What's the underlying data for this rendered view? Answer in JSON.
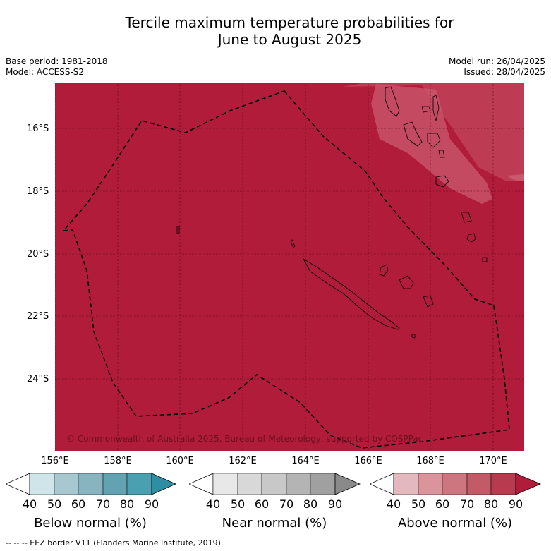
{
  "title_line1": "Tercile maximum temperature probabilities for",
  "title_line2": "June to August 2025",
  "base_period": "Base period: 1981-2018",
  "model": "Model: ACCESS-S2",
  "model_run": "Model run: 26/04/2025",
  "issued": "Issued: 28/04/2025",
  "copyright": "© Commonwealth of Australia 2025, Bureau of Meteorology, supported by COSPPac",
  "footer": "--  --  -- EEZ border V11 (Flanders Marine Institute, 2019).",
  "lat_labels": [
    "16°S",
    "18°S",
    "20°S",
    "22°S",
    "24°S"
  ],
  "lon_labels": [
    "156°E",
    "158°E",
    "160°E",
    "162°E",
    "164°E",
    "166°E",
    "168°E",
    "170°E"
  ],
  "colorbars": [
    {
      "label": "Below normal (%)",
      "ticks": [
        "40",
        "50",
        "60",
        "70",
        "80",
        "90"
      ],
      "colors": [
        "#cfe5ea",
        "#a7c8cf",
        "#87b4bf",
        "#63a2b0",
        "#4aa0b1",
        "#2e8fa3"
      ]
    },
    {
      "label": "Near normal (%)",
      "ticks": [
        "40",
        "50",
        "60",
        "70",
        "80",
        "90"
      ],
      "colors": [
        "#e8e8e8",
        "#d8d8d8",
        "#c8c8c8",
        "#b4b4b4",
        "#a0a0a0",
        "#8a8a8a"
      ]
    },
    {
      "label": "Above normal (%)",
      "ticks": [
        "40",
        "50",
        "60",
        "70",
        "80",
        "90"
      ],
      "colors": [
        "#e3b8be",
        "#d9949c",
        "#cd7680",
        "#c25a68",
        "#b73a4e",
        "#b01c3a"
      ]
    }
  ],
  "map_fill_color": "#b01c3a"
}
